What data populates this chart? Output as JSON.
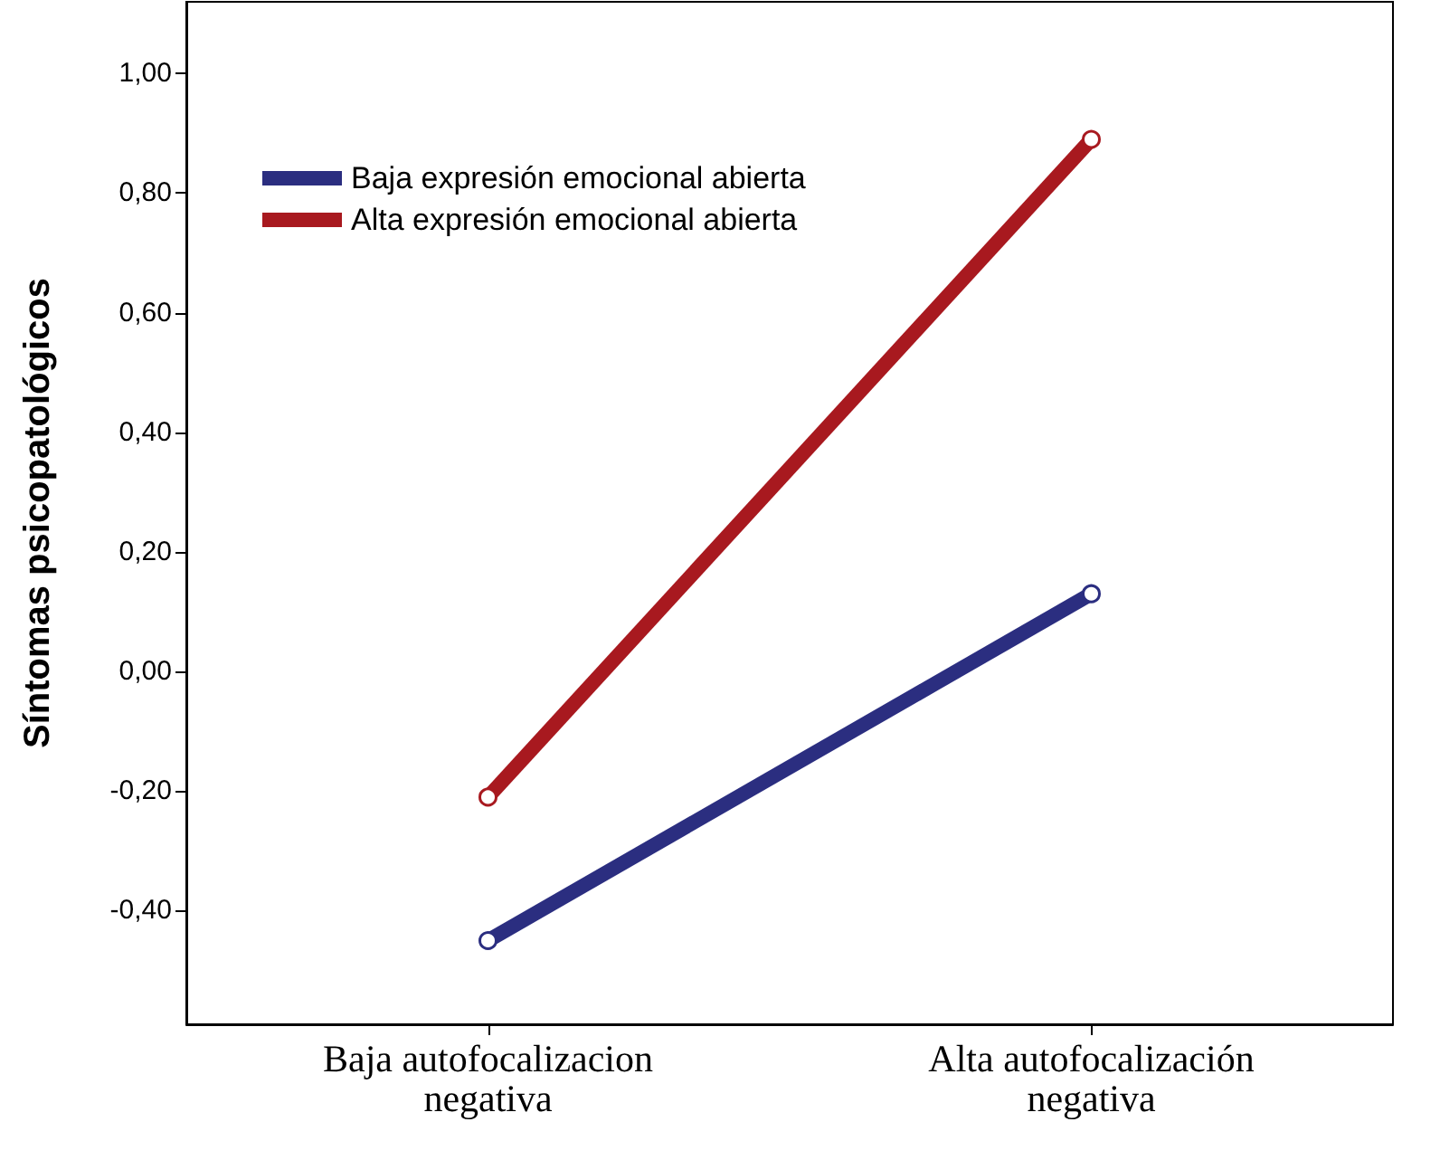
{
  "chart_data": {
    "type": "line",
    "ylabel": "Síntomas psicopatológicos",
    "categories": [
      "Baja autofocalizacion\nnegativa",
      "Alta autofocalización\nnegativa"
    ],
    "series": [
      {
        "name": "Baja expresión emocional abierta",
        "color": "#2b2e80",
        "values": [
          -0.45,
          0.13
        ]
      },
      {
        "name": "Alta expresión emocional abierta",
        "color": "#a8191f",
        "values": [
          -0.21,
          0.89
        ]
      }
    ],
    "ylim": [
      -0.59,
      1.12
    ],
    "yticks": [
      {
        "value": -0.4,
        "label": "-0,40"
      },
      {
        "value": -0.2,
        "label": "-0,20"
      },
      {
        "value": 0,
        "label": "0,00"
      },
      {
        "value": 0.2,
        "label": "0,20"
      },
      {
        "value": 0.4,
        "label": "0,40"
      },
      {
        "value": 0.6,
        "label": "0,60"
      },
      {
        "value": 0.8,
        "label": "0,80"
      },
      {
        "value": 1,
        "label": "1,00"
      }
    ],
    "legend": "top left",
    "marker": "circle",
    "line_style": "solid",
    "grid": false
  }
}
